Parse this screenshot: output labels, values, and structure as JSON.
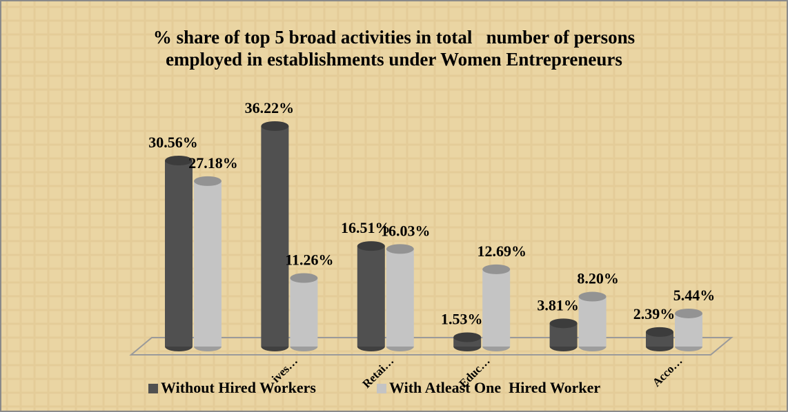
{
  "chart_data": {
    "type": "bar",
    "title": "% share of top 5 broad activities in total   number of persons employed in establishments under Women Entrepreneurs",
    "title_lines": [
      "% share of top 5 broad activities in total   number of persons",
      "employed in establishments under Women Entrepreneurs"
    ],
    "categories": [
      null,
      "ives…",
      "Retai…",
      "Educ…",
      null,
      "Acco…"
    ],
    "series": [
      {
        "name": "Without Hired Workers",
        "color": "#505050",
        "values": [
          30.56,
          36.22,
          16.51,
          1.53,
          3.81,
          2.39
        ],
        "value_labels": [
          "30.56%",
          "36.22%",
          "16.51%",
          "1.53%",
          "3.81%",
          "2.39%"
        ]
      },
      {
        "name": "With Atleast One  Hired Worker",
        "color": "#c4c4c4",
        "values": [
          27.18,
          11.26,
          16.03,
          12.69,
          8.2,
          5.44
        ],
        "value_labels": [
          "27.18%",
          "11.26%",
          "16.03%",
          "12.69%",
          "8.20%",
          "5.44%"
        ]
      }
    ]
  }
}
